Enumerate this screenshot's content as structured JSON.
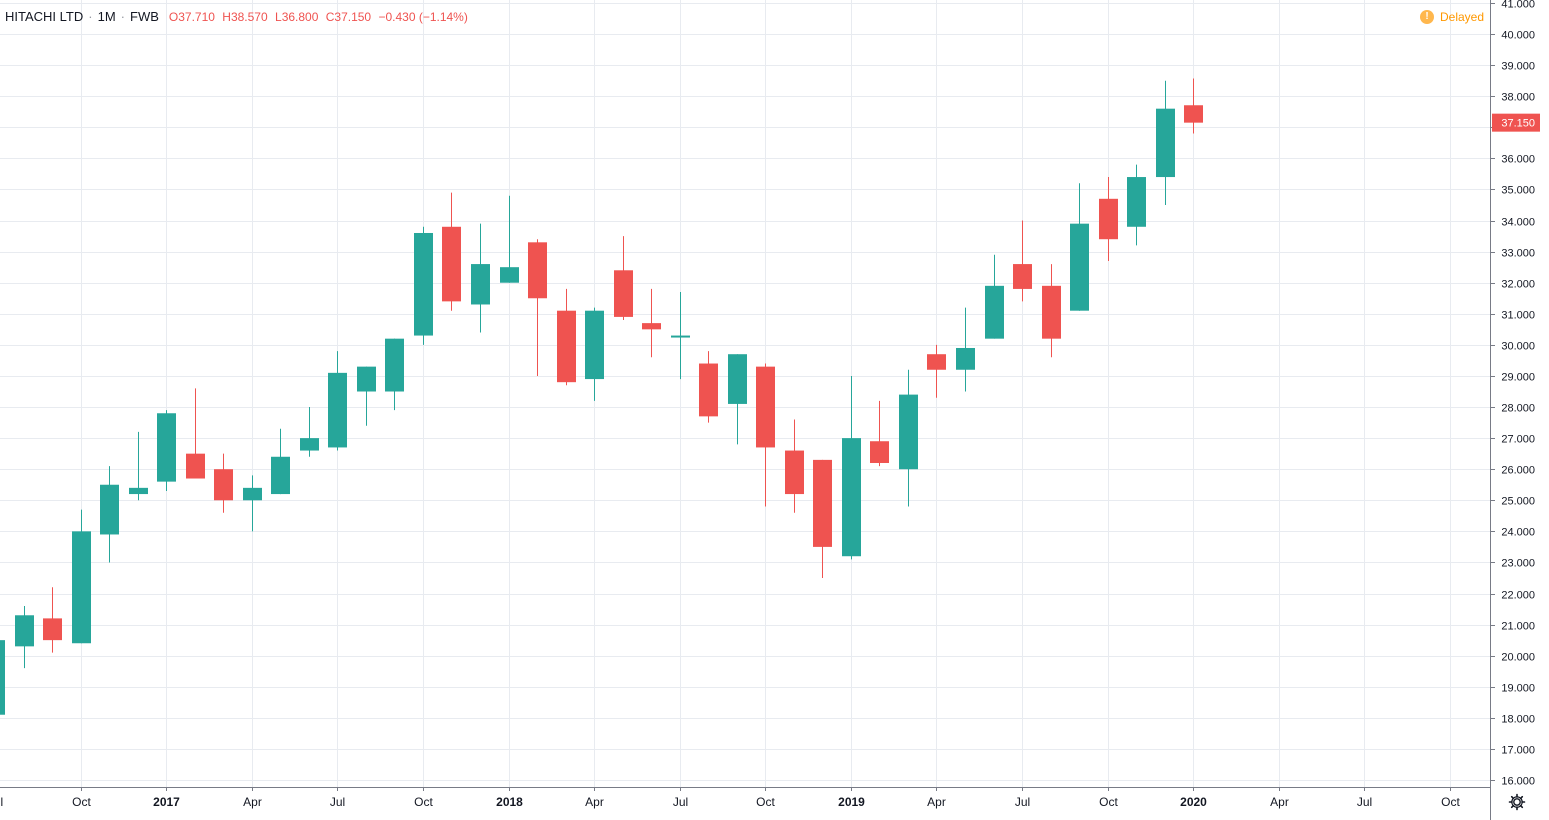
{
  "header": {
    "symbol": "HITACHI LTD",
    "interval": "1M",
    "exchange": "FWB",
    "open_label": "O",
    "open": "37.710",
    "high_label": "H",
    "high": "38.570",
    "low_label": "L",
    "low": "36.800",
    "close_label": "C",
    "close": "37.150",
    "change": "−0.430 (−1.14%)"
  },
  "status": {
    "delayed_label": "Delayed",
    "delayed_icon": "!"
  },
  "price_tag": "37.150",
  "colors": {
    "up": "#26a69a",
    "down": "#ef5350",
    "grid": "#e8ebf0",
    "axis_text": "#131722",
    "delayed": "#ff9800"
  },
  "chart_data": {
    "type": "candlestick",
    "interval": "monthly",
    "ylim": [
      16,
      41
    ],
    "y_ticks": [
      "16.000",
      "17.000",
      "18.000",
      "19.000",
      "20.000",
      "21.000",
      "22.000",
      "23.000",
      "24.000",
      "25.000",
      "26.000",
      "27.000",
      "28.000",
      "29.000",
      "30.000",
      "31.000",
      "32.000",
      "33.000",
      "34.000",
      "35.000",
      "36.000",
      "37.000",
      "38.000",
      "39.000",
      "40.000",
      "41.000"
    ],
    "x_ticks": [
      {
        "label": "Jul",
        "month": "2016-07",
        "bold": false
      },
      {
        "label": "Oct",
        "month": "2016-10",
        "bold": false
      },
      {
        "label": "2017",
        "month": "2017-01",
        "bold": true
      },
      {
        "label": "Apr",
        "month": "2017-04",
        "bold": false
      },
      {
        "label": "Jul",
        "month": "2017-07",
        "bold": false
      },
      {
        "label": "Oct",
        "month": "2017-10",
        "bold": false
      },
      {
        "label": "2018",
        "month": "2018-01",
        "bold": true
      },
      {
        "label": "Apr",
        "month": "2018-04",
        "bold": false
      },
      {
        "label": "Jul",
        "month": "2018-07",
        "bold": false
      },
      {
        "label": "Oct",
        "month": "2018-10",
        "bold": false
      },
      {
        "label": "2019",
        "month": "2019-01",
        "bold": true
      },
      {
        "label": "Apr",
        "month": "2019-04",
        "bold": false
      },
      {
        "label": "Jul",
        "month": "2019-07",
        "bold": false
      },
      {
        "label": "Oct",
        "month": "2019-10",
        "bold": false
      },
      {
        "label": "2020",
        "month": "2020-01",
        "bold": true
      },
      {
        "label": "Apr",
        "month": "2020-04",
        "bold": false
      },
      {
        "label": "Jul",
        "month": "2020-07",
        "bold": false
      },
      {
        "label": "Oct",
        "month": "2020-10",
        "bold": false
      }
    ],
    "candles": [
      {
        "month": "2016-07",
        "o": 18.1,
        "h": 20.5,
        "l": 18.1,
        "c": 20.5
      },
      {
        "month": "2016-08",
        "o": 20.3,
        "h": 21.6,
        "l": 19.6,
        "c": 21.3
      },
      {
        "month": "2016-09",
        "o": 21.2,
        "h": 22.2,
        "l": 20.1,
        "c": 20.5
      },
      {
        "month": "2016-10",
        "o": 20.4,
        "h": 24.7,
        "l": 20.4,
        "c": 24.0
      },
      {
        "month": "2016-11",
        "o": 23.9,
        "h": 26.1,
        "l": 23.0,
        "c": 25.5
      },
      {
        "month": "2016-12",
        "o": 25.2,
        "h": 27.2,
        "l": 25.0,
        "c": 25.4
      },
      {
        "month": "2017-01",
        "o": 25.6,
        "h": 27.9,
        "l": 25.3,
        "c": 27.8
      },
      {
        "month": "2017-02",
        "o": 26.5,
        "h": 28.6,
        "l": 25.7,
        "c": 25.7
      },
      {
        "month": "2017-03",
        "o": 26.0,
        "h": 26.5,
        "l": 24.6,
        "c": 25.0
      },
      {
        "month": "2017-04",
        "o": 25.0,
        "h": 25.8,
        "l": 24.0,
        "c": 25.4
      },
      {
        "month": "2017-05",
        "o": 25.2,
        "h": 27.3,
        "l": 25.2,
        "c": 26.4
      },
      {
        "month": "2017-06",
        "o": 26.6,
        "h": 28.0,
        "l": 26.4,
        "c": 27.0
      },
      {
        "month": "2017-07",
        "o": 26.7,
        "h": 29.8,
        "l": 26.6,
        "c": 29.1
      },
      {
        "month": "2017-08",
        "o": 28.5,
        "h": 29.3,
        "l": 27.4,
        "c": 29.3
      },
      {
        "month": "2017-09",
        "o": 28.5,
        "h": 30.2,
        "l": 27.9,
        "c": 30.2
      },
      {
        "month": "2017-10",
        "o": 30.3,
        "h": 33.8,
        "l": 30.0,
        "c": 33.6
      },
      {
        "month": "2017-11",
        "o": 33.8,
        "h": 34.9,
        "l": 31.1,
        "c": 31.4
      },
      {
        "month": "2017-12",
        "o": 31.3,
        "h": 33.9,
        "l": 30.4,
        "c": 32.6
      },
      {
        "month": "2018-01",
        "o": 32.0,
        "h": 34.8,
        "l": 32.0,
        "c": 32.5
      },
      {
        "month": "2018-02",
        "o": 33.3,
        "h": 33.4,
        "l": 29.0,
        "c": 31.5
      },
      {
        "month": "2018-03",
        "o": 31.1,
        "h": 31.8,
        "l": 28.7,
        "c": 28.8
      },
      {
        "month": "2018-04",
        "o": 28.9,
        "h": 31.2,
        "l": 28.2,
        "c": 31.1
      },
      {
        "month": "2018-05",
        "o": 32.4,
        "h": 33.5,
        "l": 30.8,
        "c": 30.9
      },
      {
        "month": "2018-06",
        "o": 30.7,
        "h": 31.8,
        "l": 29.6,
        "c": 30.5
      },
      {
        "month": "2018-07",
        "o": 30.3,
        "h": 31.7,
        "l": 28.9,
        "c": 30.3
      },
      {
        "month": "2018-08",
        "o": 29.4,
        "h": 29.8,
        "l": 27.5,
        "c": 27.7
      },
      {
        "month": "2018-09",
        "o": 28.1,
        "h": 29.7,
        "l": 26.8,
        "c": 29.7
      },
      {
        "month": "2018-10",
        "o": 29.3,
        "h": 29.4,
        "l": 24.8,
        "c": 26.7
      },
      {
        "month": "2018-11",
        "o": 26.6,
        "h": 27.6,
        "l": 24.6,
        "c": 25.2
      },
      {
        "month": "2018-12",
        "o": 26.3,
        "h": 26.3,
        "l": 22.5,
        "c": 23.5
      },
      {
        "month": "2019-01",
        "o": 23.2,
        "h": 29.0,
        "l": 23.1,
        "c": 27.0
      },
      {
        "month": "2019-02",
        "o": 26.9,
        "h": 28.2,
        "l": 26.1,
        "c": 26.2
      },
      {
        "month": "2019-03",
        "o": 26.0,
        "h": 29.2,
        "l": 24.8,
        "c": 28.4
      },
      {
        "month": "2019-04",
        "o": 29.7,
        "h": 30.0,
        "l": 28.3,
        "c": 29.2
      },
      {
        "month": "2019-05",
        "o": 29.2,
        "h": 31.2,
        "l": 28.5,
        "c": 29.9
      },
      {
        "month": "2019-06",
        "o": 30.2,
        "h": 32.9,
        "l": 30.2,
        "c": 31.9
      },
      {
        "month": "2019-07",
        "o": 32.6,
        "h": 34.0,
        "l": 31.4,
        "c": 31.8
      },
      {
        "month": "2019-08",
        "o": 31.9,
        "h": 32.6,
        "l": 29.6,
        "c": 30.2
      },
      {
        "month": "2019-09",
        "o": 31.1,
        "h": 35.2,
        "l": 31.1,
        "c": 33.9
      },
      {
        "month": "2019-10",
        "o": 34.7,
        "h": 35.4,
        "l": 32.7,
        "c": 33.4
      },
      {
        "month": "2019-11",
        "o": 33.8,
        "h": 35.8,
        "l": 33.2,
        "c": 35.4
      },
      {
        "month": "2019-12",
        "o": 35.4,
        "h": 38.5,
        "l": 34.5,
        "c": 37.6
      },
      {
        "month": "2020-01",
        "o": 37.71,
        "h": 38.57,
        "l": 36.8,
        "c": 37.15
      }
    ]
  }
}
